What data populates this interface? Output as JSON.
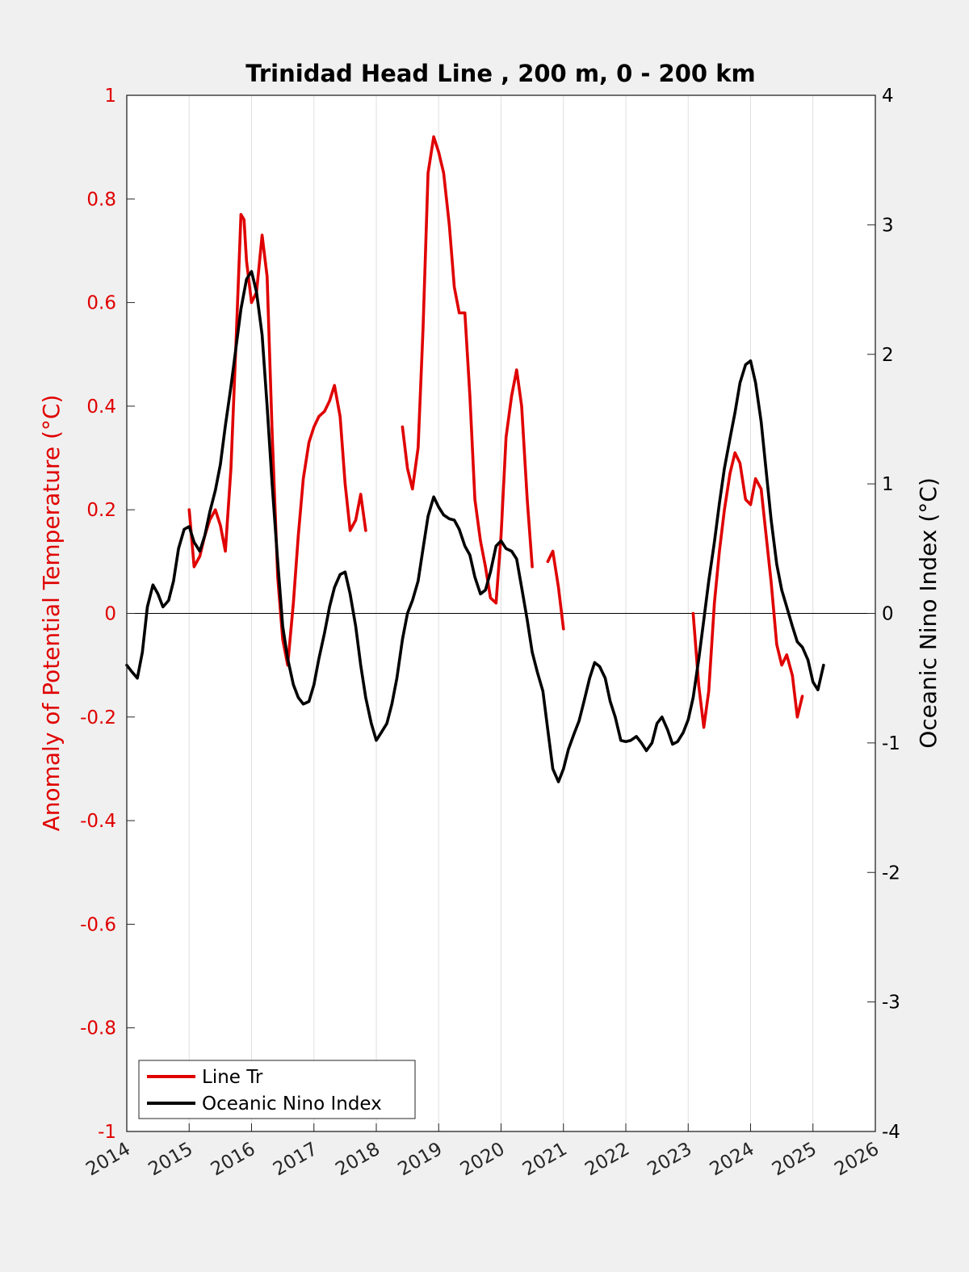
{
  "chart_data": {
    "type": "line",
    "title": "Trinidad Head Line , 200 m, 0 - 200 km",
    "ylabel_left": "Anomaly of Potential Temperature (°C)",
    "ylabel_right": "Oceanic Nino Index (°C)",
    "xlim": [
      2014,
      2026
    ],
    "ylim_left": [
      -1,
      1
    ],
    "ylim_right": [
      -4,
      4
    ],
    "x_ticks": [
      2014,
      2015,
      2016,
      2017,
      2018,
      2019,
      2020,
      2021,
      2022,
      2023,
      2024,
      2025,
      2026
    ],
    "y_left_ticks": [
      -1,
      -0.8,
      -0.6,
      -0.4,
      -0.2,
      0,
      0.2,
      0.4,
      0.6,
      0.8,
      1
    ],
    "y_right_ticks": [
      -4,
      -3,
      -2,
      -1,
      0,
      1,
      2,
      3,
      4
    ],
    "grid": "x-only",
    "zero_line": true,
    "legend_position": "bottom-left",
    "series": [
      {
        "name": "Line Tr",
        "axis": "left",
        "color": "#e00000",
        "segments": [
          [
            [
              2015.0,
              0.2
            ],
            [
              2015.08,
              0.09
            ],
            [
              2015.17,
              0.11
            ],
            [
              2015.25,
              0.15
            ],
            [
              2015.33,
              0.18
            ],
            [
              2015.42,
              0.2
            ],
            [
              2015.5,
              0.17
            ],
            [
              2015.58,
              0.12
            ],
            [
              2015.67,
              0.28
            ],
            [
              2015.75,
              0.52
            ],
            [
              2015.83,
              0.77
            ],
            [
              2015.88,
              0.76
            ],
            [
              2015.92,
              0.68
            ],
            [
              2016.0,
              0.6
            ],
            [
              2016.08,
              0.62
            ],
            [
              2016.17,
              0.73
            ],
            [
              2016.25,
              0.65
            ],
            [
              2016.33,
              0.35
            ],
            [
              2016.42,
              0.07
            ],
            [
              2016.5,
              -0.05
            ],
            [
              2016.58,
              -0.1
            ],
            [
              2016.67,
              0.02
            ],
            [
              2016.75,
              0.15
            ],
            [
              2016.83,
              0.26
            ],
            [
              2016.92,
              0.33
            ],
            [
              2017.0,
              0.36
            ],
            [
              2017.08,
              0.38
            ],
            [
              2017.17,
              0.39
            ],
            [
              2017.25,
              0.41
            ],
            [
              2017.33,
              0.44
            ],
            [
              2017.42,
              0.38
            ],
            [
              2017.5,
              0.25
            ],
            [
              2017.58,
              0.16
            ],
            [
              2017.67,
              0.18
            ],
            [
              2017.75,
              0.23
            ],
            [
              2017.83,
              0.16
            ]
          ],
          [
            [
              2018.42,
              0.36
            ],
            [
              2018.5,
              0.28
            ],
            [
              2018.58,
              0.24
            ],
            [
              2018.67,
              0.32
            ],
            [
              2018.75,
              0.55
            ],
            [
              2018.83,
              0.85
            ],
            [
              2018.92,
              0.92
            ],
            [
              2019.0,
              0.89
            ],
            [
              2019.08,
              0.85
            ],
            [
              2019.17,
              0.75
            ],
            [
              2019.25,
              0.63
            ],
            [
              2019.33,
              0.58
            ],
            [
              2019.42,
              0.58
            ],
            [
              2019.5,
              0.42
            ],
            [
              2019.58,
              0.22
            ],
            [
              2019.67,
              0.14
            ],
            [
              2019.75,
              0.09
            ],
            [
              2019.83,
              0.03
            ],
            [
              2019.92,
              0.02
            ],
            [
              2020.0,
              0.15
            ],
            [
              2020.08,
              0.34
            ],
            [
              2020.17,
              0.42
            ],
            [
              2020.25,
              0.47
            ],
            [
              2020.33,
              0.4
            ],
            [
              2020.42,
              0.22
            ],
            [
              2020.5,
              0.09
            ]
          ],
          [
            [
              2020.75,
              0.1
            ],
            [
              2020.83,
              0.12
            ],
            [
              2020.92,
              0.05
            ],
            [
              2021.0,
              -0.03
            ]
          ],
          [
            [
              2023.08,
              0.0
            ],
            [
              2023.17,
              -0.14
            ],
            [
              2023.25,
              -0.22
            ],
            [
              2023.33,
              -0.15
            ],
            [
              2023.42,
              0.02
            ],
            [
              2023.5,
              0.12
            ],
            [
              2023.58,
              0.2
            ],
            [
              2023.67,
              0.27
            ],
            [
              2023.75,
              0.31
            ],
            [
              2023.83,
              0.29
            ],
            [
              2023.92,
              0.22
            ],
            [
              2024.0,
              0.21
            ],
            [
              2024.08,
              0.26
            ],
            [
              2024.17,
              0.24
            ],
            [
              2024.25,
              0.15
            ],
            [
              2024.33,
              0.06
            ],
            [
              2024.42,
              -0.06
            ],
            [
              2024.5,
              -0.1
            ],
            [
              2024.58,
              -0.08
            ],
            [
              2024.67,
              -0.12
            ],
            [
              2024.75,
              -0.2
            ],
            [
              2024.83,
              -0.16
            ]
          ]
        ]
      },
      {
        "name": "Oceanic Nino Index",
        "axis": "right",
        "color": "#000000",
        "segments": [
          [
            [
              2014.0,
              -0.4
            ],
            [
              2014.08,
              -0.45
            ],
            [
              2014.17,
              -0.5
            ],
            [
              2014.25,
              -0.3
            ],
            [
              2014.33,
              0.05
            ],
            [
              2014.42,
              0.22
            ],
            [
              2014.5,
              0.15
            ],
            [
              2014.58,
              0.05
            ],
            [
              2014.67,
              0.1
            ],
            [
              2014.75,
              0.25
            ],
            [
              2014.83,
              0.5
            ],
            [
              2014.92,
              0.65
            ],
            [
              2015.0,
              0.67
            ],
            [
              2015.08,
              0.55
            ],
            [
              2015.17,
              0.48
            ],
            [
              2015.25,
              0.6
            ],
            [
              2015.33,
              0.78
            ],
            [
              2015.42,
              0.95
            ],
            [
              2015.5,
              1.15
            ],
            [
              2015.58,
              1.45
            ],
            [
              2015.67,
              1.75
            ],
            [
              2015.75,
              2.05
            ],
            [
              2015.83,
              2.35
            ],
            [
              2015.92,
              2.58
            ],
            [
              2016.0,
              2.64
            ],
            [
              2016.08,
              2.48
            ],
            [
              2016.17,
              2.15
            ],
            [
              2016.25,
              1.6
            ],
            [
              2016.33,
              1.0
            ],
            [
              2016.42,
              0.4
            ],
            [
              2016.5,
              -0.1
            ],
            [
              2016.58,
              -0.35
            ],
            [
              2016.67,
              -0.55
            ],
            [
              2016.75,
              -0.65
            ],
            [
              2016.83,
              -0.7
            ],
            [
              2016.92,
              -0.68
            ],
            [
              2017.0,
              -0.55
            ],
            [
              2017.08,
              -0.35
            ],
            [
              2017.17,
              -0.15
            ],
            [
              2017.25,
              0.05
            ],
            [
              2017.33,
              0.2
            ],
            [
              2017.42,
              0.3
            ],
            [
              2017.5,
              0.32
            ],
            [
              2017.58,
              0.15
            ],
            [
              2017.67,
              -0.1
            ],
            [
              2017.75,
              -0.4
            ],
            [
              2017.83,
              -0.65
            ],
            [
              2017.92,
              -0.85
            ],
            [
              2018.0,
              -0.98
            ],
            [
              2018.08,
              -0.92
            ],
            [
              2018.17,
              -0.85
            ],
            [
              2018.25,
              -0.7
            ],
            [
              2018.33,
              -0.5
            ],
            [
              2018.42,
              -0.2
            ],
            [
              2018.5,
              0.0
            ],
            [
              2018.58,
              0.1
            ],
            [
              2018.67,
              0.25
            ],
            [
              2018.75,
              0.5
            ],
            [
              2018.83,
              0.75
            ],
            [
              2018.92,
              0.9
            ],
            [
              2019.0,
              0.82
            ],
            [
              2019.08,
              0.76
            ],
            [
              2019.17,
              0.73
            ],
            [
              2019.25,
              0.72
            ],
            [
              2019.33,
              0.65
            ],
            [
              2019.42,
              0.52
            ],
            [
              2019.5,
              0.45
            ],
            [
              2019.58,
              0.28
            ],
            [
              2019.67,
              0.15
            ],
            [
              2019.75,
              0.18
            ],
            [
              2019.83,
              0.32
            ],
            [
              2019.92,
              0.52
            ],
            [
              2020.0,
              0.56
            ],
            [
              2020.08,
              0.5
            ],
            [
              2020.17,
              0.48
            ],
            [
              2020.25,
              0.42
            ],
            [
              2020.33,
              0.2
            ],
            [
              2020.42,
              -0.05
            ],
            [
              2020.5,
              -0.3
            ],
            [
              2020.58,
              -0.45
            ],
            [
              2020.67,
              -0.6
            ],
            [
              2020.75,
              -0.9
            ],
            [
              2020.83,
              -1.2
            ],
            [
              2020.92,
              -1.3
            ],
            [
              2021.0,
              -1.2
            ],
            [
              2021.08,
              -1.05
            ],
            [
              2021.17,
              -0.93
            ],
            [
              2021.25,
              -0.83
            ],
            [
              2021.33,
              -0.68
            ],
            [
              2021.42,
              -0.5
            ],
            [
              2021.5,
              -0.38
            ],
            [
              2021.58,
              -0.41
            ],
            [
              2021.67,
              -0.5
            ],
            [
              2021.75,
              -0.68
            ],
            [
              2021.83,
              -0.8
            ],
            [
              2021.92,
              -0.98
            ],
            [
              2022.0,
              -0.99
            ],
            [
              2022.08,
              -0.98
            ],
            [
              2022.17,
              -0.95
            ],
            [
              2022.25,
              -1.0
            ],
            [
              2022.33,
              -1.06
            ],
            [
              2022.42,
              -1.0
            ],
            [
              2022.5,
              -0.85
            ],
            [
              2022.58,
              -0.8
            ],
            [
              2022.67,
              -0.9
            ],
            [
              2022.75,
              -1.01
            ],
            [
              2022.83,
              -0.99
            ],
            [
              2022.92,
              -0.92
            ],
            [
              2023.0,
              -0.82
            ],
            [
              2023.08,
              -0.65
            ],
            [
              2023.17,
              -0.35
            ],
            [
              2023.25,
              -0.05
            ],
            [
              2023.33,
              0.25
            ],
            [
              2023.42,
              0.55
            ],
            [
              2023.5,
              0.85
            ],
            [
              2023.58,
              1.12
            ],
            [
              2023.67,
              1.35
            ],
            [
              2023.75,
              1.55
            ],
            [
              2023.83,
              1.78
            ],
            [
              2023.92,
              1.92
            ],
            [
              2024.0,
              1.95
            ],
            [
              2024.08,
              1.78
            ],
            [
              2024.17,
              1.48
            ],
            [
              2024.25,
              1.1
            ],
            [
              2024.33,
              0.72
            ],
            [
              2024.42,
              0.38
            ],
            [
              2024.5,
              0.18
            ],
            [
              2024.58,
              0.05
            ],
            [
              2024.67,
              -0.1
            ],
            [
              2024.75,
              -0.22
            ],
            [
              2024.83,
              -0.26
            ],
            [
              2024.92,
              -0.36
            ],
            [
              2025.0,
              -0.53
            ],
            [
              2025.08,
              -0.59
            ],
            [
              2025.17,
              -0.4
            ]
          ]
        ]
      }
    ]
  }
}
